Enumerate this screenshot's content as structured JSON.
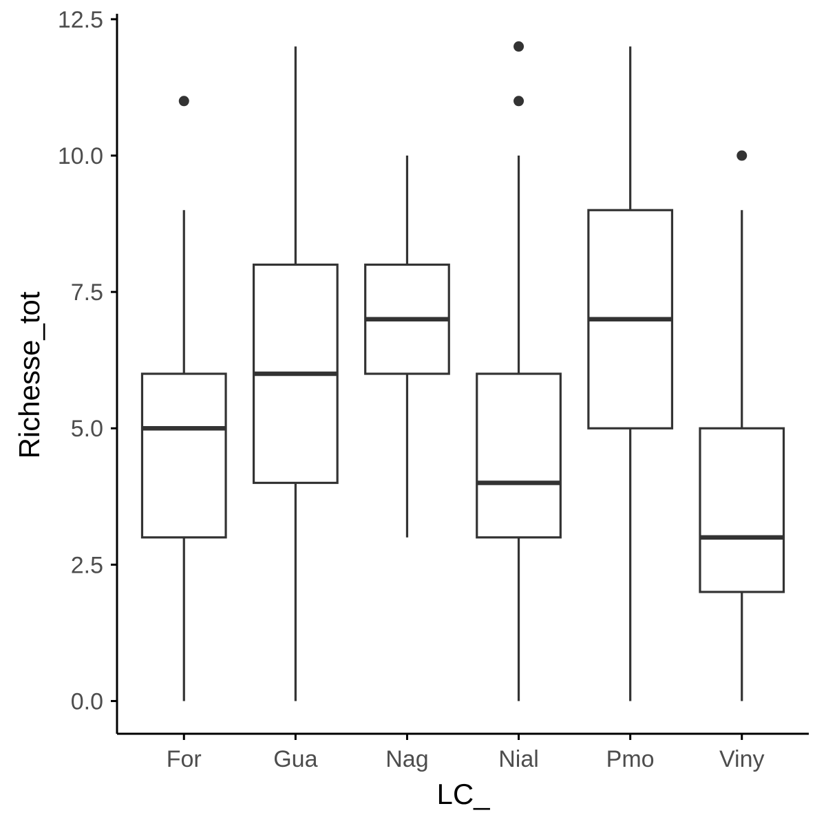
{
  "chart_data": {
    "type": "boxplot",
    "xlabel": "LC_",
    "ylabel": "Richesse_tot",
    "ylim": [
      -0.6,
      12.6
    ],
    "yticks": [
      "0.0",
      "2.5",
      "5.0",
      "7.5",
      "10.0",
      "12.5"
    ],
    "ytick_values": [
      0,
      2.5,
      5,
      7.5,
      10,
      12.5
    ],
    "grid": false,
    "categories": [
      "For",
      "Gua",
      "Nag",
      "Nial",
      "Pmo",
      "Viny"
    ],
    "boxes": [
      {
        "category": "For",
        "whisker_low": 0,
        "q1": 3,
        "median": 5,
        "q3": 6,
        "whisker_high": 9,
        "outliers": [
          11
        ]
      },
      {
        "category": "Gua",
        "whisker_low": 0,
        "q1": 4,
        "median": 6,
        "q3": 8,
        "whisker_high": 12,
        "outliers": []
      },
      {
        "category": "Nag",
        "whisker_low": 3,
        "q1": 6,
        "median": 7,
        "q3": 8,
        "whisker_high": 10,
        "outliers": []
      },
      {
        "category": "Nial",
        "whisker_low": 0,
        "q1": 3,
        "median": 4,
        "q3": 6,
        "whisker_high": 10,
        "outliers": [
          11,
          12
        ]
      },
      {
        "category": "Pmo",
        "whisker_low": 0,
        "q1": 5,
        "median": 7,
        "q3": 9,
        "whisker_high": 12,
        "outliers": []
      },
      {
        "category": "Viny",
        "whisker_low": 0,
        "q1": 2,
        "median": 3,
        "q3": 5,
        "whisker_high": 9,
        "outliers": [
          10
        ]
      }
    ],
    "colors": {
      "box_stroke": "#333333",
      "box_fill": "#ffffff",
      "axis": "#000000",
      "tick_label": "#4d4d4d"
    }
  }
}
